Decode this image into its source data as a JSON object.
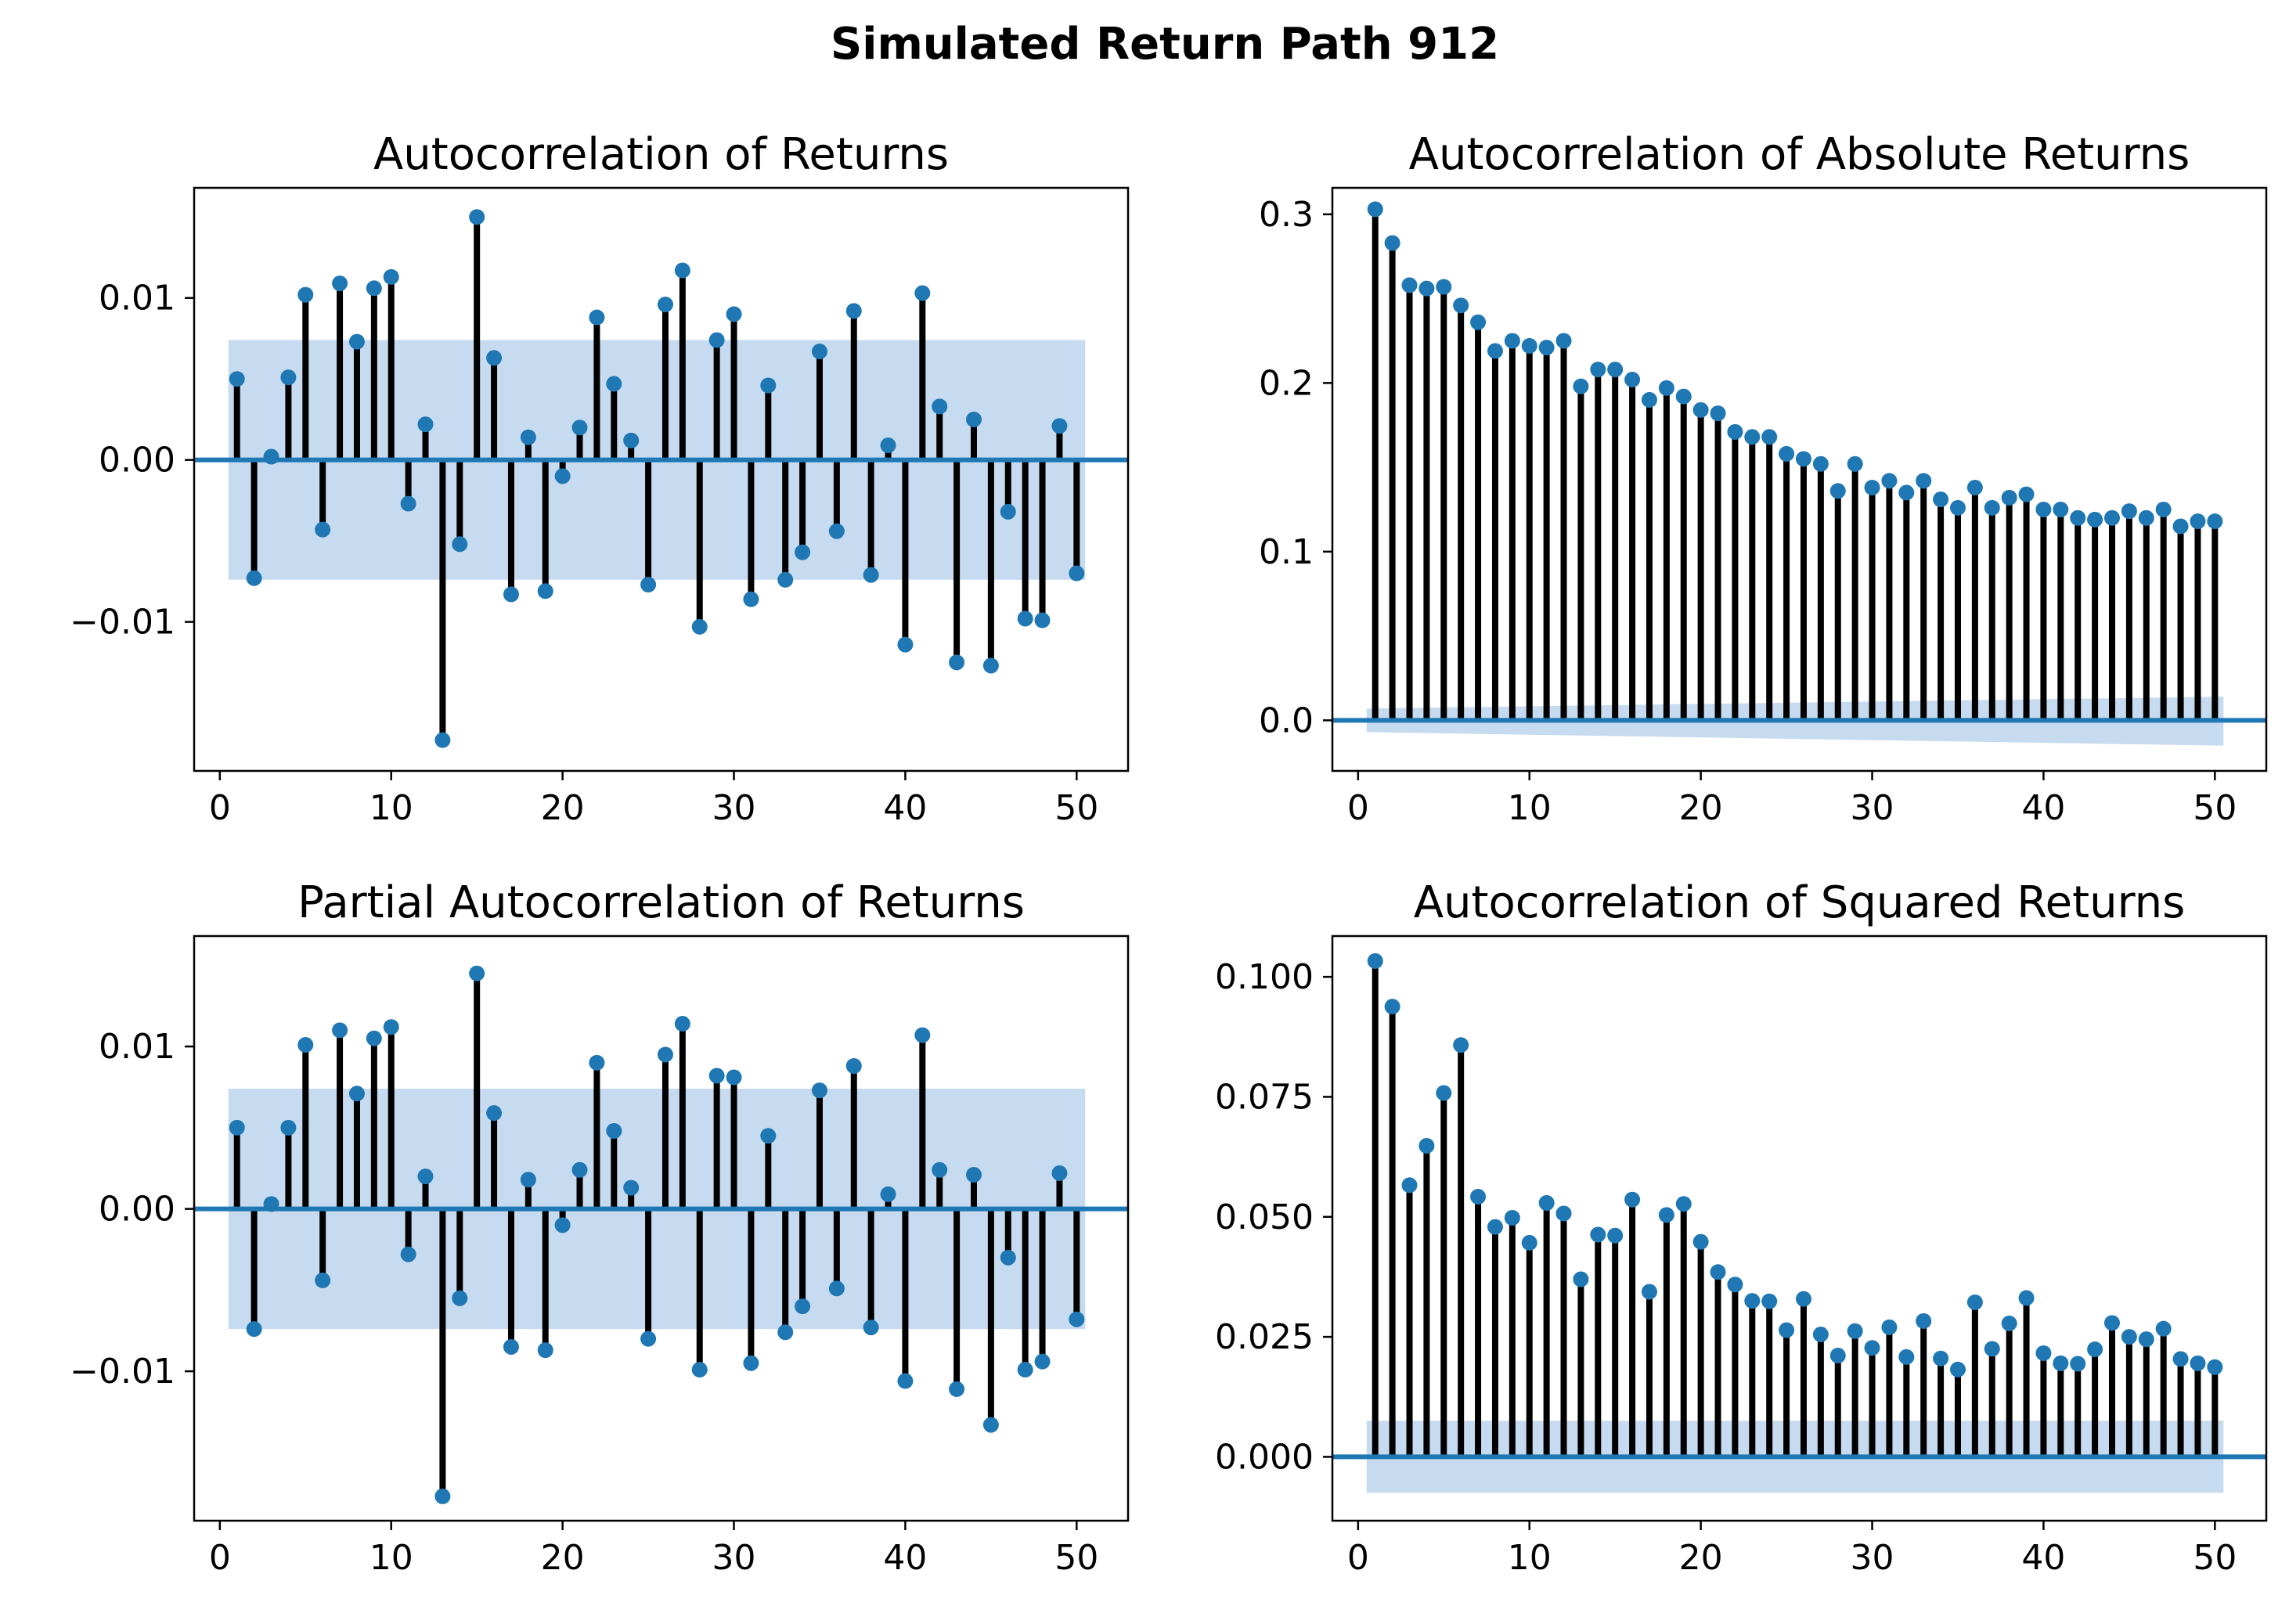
{
  "figure_title": "Simulated Return Path 912",
  "chart_data": [
    {
      "type": "stem",
      "title": "Autocorrelation of Returns",
      "xlim": [
        -1.5,
        53.0
      ],
      "ylim": [
        -0.0192,
        0.0168
      ],
      "x_ticks": [
        0,
        10,
        20,
        30,
        40,
        50
      ],
      "x_tick_labels": [
        "0",
        "10",
        "20",
        "30",
        "40",
        "50"
      ],
      "y_ticks": [
        -0.01,
        0.0,
        0.01
      ],
      "y_tick_labels": [
        "−0.01",
        "0.00",
        "0.01"
      ],
      "confidence_band": {
        "lower": -0.0074,
        "upper": 0.0074,
        "x_range": [
          0.5,
          50.5
        ]
      },
      "x": [
        1,
        2,
        3,
        4,
        5,
        6,
        7,
        8,
        9,
        10,
        11,
        12,
        13,
        14,
        15,
        16,
        17,
        18,
        19,
        20,
        21,
        22,
        23,
        24,
        25,
        26,
        27,
        28,
        29,
        30,
        31,
        32,
        33,
        34,
        35,
        36,
        37,
        38,
        39,
        40,
        41,
        42,
        43,
        44,
        45,
        46,
        47,
        48,
        49,
        50
      ],
      "values": [
        0.005,
        -0.0073,
        0.0002,
        0.0051,
        0.0102,
        -0.0043,
        0.0109,
        0.0073,
        0.0106,
        0.0113,
        -0.0027,
        0.0022,
        -0.0173,
        -0.0052,
        0.015,
        0.0063,
        -0.0083,
        0.0014,
        -0.0081,
        -0.001,
        0.002,
        0.0088,
        0.0047,
        0.0012,
        -0.0077,
        0.0096,
        0.0117,
        -0.0103,
        0.0074,
        0.009,
        -0.0086,
        0.0046,
        -0.0074,
        -0.0057,
        0.0067,
        -0.0044,
        0.0092,
        -0.0071,
        0.0009,
        -0.0114,
        0.0103,
        0.0033,
        -0.0125,
        0.0025,
        -0.0127,
        -0.0032,
        -0.0098,
        -0.0099,
        0.0021,
        -0.007
      ]
    },
    {
      "type": "stem",
      "title": "Autocorrelation of Absolute Returns",
      "xlim": [
        -1.5,
        53.0
      ],
      "ylim": [
        -0.03,
        0.3157
      ],
      "x_ticks": [
        0,
        10,
        20,
        30,
        40,
        50
      ],
      "x_tick_labels": [
        "0",
        "10",
        "20",
        "30",
        "40",
        "50"
      ],
      "y_ticks": [
        0.0,
        0.1,
        0.2,
        0.3
      ],
      "y_tick_labels": [
        "0.0",
        "0.1",
        "0.2",
        "0.3"
      ],
      "confidence_band": {
        "lower_start": -0.007,
        "lower_end": -0.015,
        "upper_start": 0.007,
        "upper_end": 0.014,
        "x_range": [
          0.5,
          50.5
        ]
      },
      "x": [
        1,
        2,
        3,
        4,
        5,
        6,
        7,
        8,
        9,
        10,
        11,
        12,
        13,
        14,
        15,
        16,
        17,
        18,
        19,
        20,
        21,
        22,
        23,
        24,
        25,
        26,
        27,
        28,
        29,
        30,
        31,
        32,
        33,
        34,
        35,
        36,
        37,
        38,
        39,
        40,
        41,
        42,
        43,
        44,
        45,
        46,
        47,
        48,
        49,
        50
      ],
      "values": [
        0.303,
        0.283,
        0.258,
        0.256,
        0.257,
        0.246,
        0.236,
        0.219,
        0.225,
        0.222,
        0.221,
        0.225,
        0.198,
        0.208,
        0.208,
        0.202,
        0.19,
        0.197,
        0.192,
        0.184,
        0.182,
        0.171,
        0.168,
        0.168,
        0.158,
        0.155,
        0.152,
        0.136,
        0.152,
        0.138,
        0.142,
        0.135,
        0.142,
        0.131,
        0.126,
        0.138,
        0.126,
        0.132,
        0.134,
        0.125,
        0.125,
        0.12,
        0.119,
        0.12,
        0.124,
        0.12,
        0.125,
        0.115,
        0.118,
        0.118
      ]
    },
    {
      "type": "stem",
      "title": "Partial Autocorrelation of Returns",
      "xlim": [
        -1.5,
        53.0
      ],
      "ylim": [
        -0.0192,
        0.0168
      ],
      "x_ticks": [
        0,
        10,
        20,
        30,
        40,
        50
      ],
      "x_tick_labels": [
        "0",
        "10",
        "20",
        "30",
        "40",
        "50"
      ],
      "y_ticks": [
        -0.01,
        0.0,
        0.01
      ],
      "y_tick_labels": [
        "−0.01",
        "0.00",
        "0.01"
      ],
      "confidence_band": {
        "lower": -0.0074,
        "upper": 0.0074,
        "x_range": [
          0.5,
          50.5
        ]
      },
      "x": [
        1,
        2,
        3,
        4,
        5,
        6,
        7,
        8,
        9,
        10,
        11,
        12,
        13,
        14,
        15,
        16,
        17,
        18,
        19,
        20,
        21,
        22,
        23,
        24,
        25,
        26,
        27,
        28,
        29,
        30,
        31,
        32,
        33,
        34,
        35,
        36,
        37,
        38,
        39,
        40,
        41,
        42,
        43,
        44,
        45,
        46,
        47,
        48,
        49,
        50
      ],
      "values": [
        0.005,
        -0.0074,
        0.0003,
        0.005,
        0.0101,
        -0.0044,
        0.011,
        0.0071,
        0.0105,
        0.0112,
        -0.0028,
        0.002,
        -0.0177,
        -0.0055,
        0.0145,
        0.0059,
        -0.0085,
        0.0018,
        -0.0087,
        -0.001,
        0.0024,
        0.009,
        0.0048,
        0.0013,
        -0.008,
        0.0095,
        0.0114,
        -0.0099,
        0.0082,
        0.0081,
        -0.0095,
        0.0045,
        -0.0076,
        -0.006,
        0.0073,
        -0.0049,
        0.0088,
        -0.0073,
        0.0009,
        -0.0106,
        0.0107,
        0.0024,
        -0.0111,
        0.0021,
        -0.0133,
        -0.003,
        -0.0099,
        -0.0094,
        0.0022,
        -0.0068
      ]
    },
    {
      "type": "stem",
      "title": "Autocorrelation of Squared Returns",
      "xlim": [
        -1.5,
        53.0
      ],
      "ylim": [
        -0.0133,
        0.1085
      ],
      "x_ticks": [
        0,
        10,
        20,
        30,
        40,
        50
      ],
      "x_tick_labels": [
        "0",
        "10",
        "20",
        "30",
        "40",
        "50"
      ],
      "y_ticks": [
        0.0,
        0.025,
        0.05,
        0.075,
        0.1
      ],
      "y_tick_labels": [
        "0.000",
        "0.025",
        "0.050",
        "0.075",
        "0.100"
      ],
      "confidence_band": {
        "lower": -0.0075,
        "upper": 0.0075,
        "x_range": [
          0.5,
          50.5
        ]
      },
      "x": [
        1,
        2,
        3,
        4,
        5,
        6,
        7,
        8,
        9,
        10,
        11,
        12,
        13,
        14,
        15,
        16,
        17,
        18,
        19,
        20,
        21,
        22,
        23,
        24,
        25,
        26,
        27,
        28,
        29,
        30,
        31,
        32,
        33,
        34,
        35,
        36,
        37,
        38,
        39,
        40,
        41,
        42,
        43,
        44,
        45,
        46,
        47,
        48,
        49,
        50
      ],
      "values": [
        0.1033,
        0.0938,
        0.0566,
        0.0648,
        0.0758,
        0.0858,
        0.0542,
        0.0479,
        0.0498,
        0.0446,
        0.0529,
        0.0507,
        0.037,
        0.0463,
        0.0461,
        0.0536,
        0.0344,
        0.0504,
        0.0527,
        0.0448,
        0.0385,
        0.0359,
        0.0325,
        0.0324,
        0.0264,
        0.0329,
        0.0255,
        0.0211,
        0.0262,
        0.0227,
        0.027,
        0.0208,
        0.0283,
        0.0205,
        0.0182,
        0.0322,
        0.0225,
        0.0278,
        0.0331,
        0.0216,
        0.0195,
        0.0194,
        0.0224,
        0.0279,
        0.025,
        0.0245,
        0.0267,
        0.0204,
        0.0195,
        0.0187
      ]
    }
  ]
}
